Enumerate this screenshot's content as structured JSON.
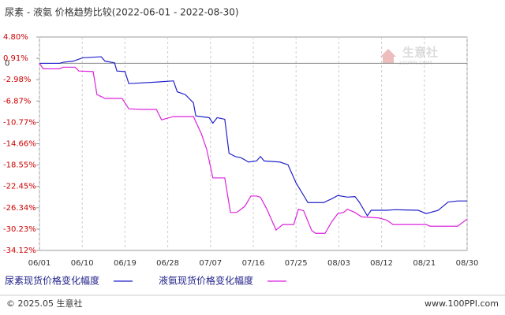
{
  "chart_data": {
    "type": "line",
    "title": "尿素 - 液氨 价格趋势比较(2022-06-01 - 2022-08-30)",
    "xlim": [
      0,
      90
    ],
    "xticks": [
      {
        "value": 0,
        "label": "06/01"
      },
      {
        "value": 9,
        "label": "06/10"
      },
      {
        "value": 18,
        "label": "06/19"
      },
      {
        "value": 27,
        "label": "06/28"
      },
      {
        "value": 36,
        "label": "07/07"
      },
      {
        "value": 45,
        "label": "07/16"
      },
      {
        "value": 54,
        "label": "07/25"
      },
      {
        "value": 63,
        "label": "08/03"
      },
      {
        "value": 72,
        "label": "08/12"
      },
      {
        "value": 81,
        "label": "08/21"
      },
      {
        "value": 90,
        "label": "08/30"
      }
    ],
    "ylim": [
      -34.12,
      4.8
    ],
    "yticks": [
      {
        "value": 4.8,
        "label": "4.80%"
      },
      {
        "value": 0.91,
        "label": "0.91%"
      },
      {
        "value": -2.98,
        "label": "-2.98%"
      },
      {
        "value": -6.87,
        "label": "-6.87%"
      },
      {
        "value": -10.77,
        "label": "-10.77%"
      },
      {
        "value": -14.66,
        "label": "-14.66%"
      },
      {
        "value": -18.55,
        "label": "-18.55%"
      },
      {
        "value": -22.45,
        "label": "-22.45%"
      },
      {
        "value": -26.34,
        "label": "-26.34%"
      },
      {
        "value": -30.23,
        "label": "-30.23%"
      },
      {
        "value": -34.12,
        "label": "-34.12%"
      }
    ],
    "zero_line": {
      "value": 0,
      "label": "0"
    },
    "grid": "x",
    "series": [
      {
        "name": "尿素现货价格变化幅度",
        "color": "#2222cc",
        "x": [
          0,
          4.2,
          5,
          7.1,
          9.1,
          13,
          13.8,
          15.8,
          16.3,
          18,
          18.8,
          24.9,
          28.2,
          29,
          30.7,
          32.4,
          32.9,
          35.7,
          36.5,
          37.4,
          39,
          39.9,
          41.2,
          42.4,
          44,
          45.7,
          46.5,
          47.3,
          50.6,
          52.3,
          54,
          56.5,
          59.8,
          61.5,
          62.8,
          64.8,
          66.4,
          67.3,
          69,
          69.8,
          73.1,
          74.8,
          79.7,
          81.4,
          83.9,
          86,
          88,
          90
        ],
        "values": [
          0,
          0,
          0.2,
          0.4,
          1.0,
          1.2,
          0.4,
          0.1,
          -1.4,
          -1.5,
          -3.7,
          -3.4,
          -3.2,
          -5.2,
          -5.7,
          -7.2,
          -9.6,
          -9.9,
          -10.9,
          -9.9,
          -10.2,
          -16.4,
          -17.0,
          -17.2,
          -18.0,
          -17.8,
          -17.0,
          -17.8,
          -18.0,
          -18.5,
          -21.8,
          -25.4,
          -25.4,
          -24.7,
          -24.1,
          -24.4,
          -24.3,
          -25.3,
          -27.8,
          -26.8,
          -26.8,
          -26.7,
          -26.8,
          -27.4,
          -26.8,
          -25.3,
          -25.1,
          -25.1
        ]
      },
      {
        "name": "液氨现货价格变化幅度",
        "color": "#dd22dd",
        "x": [
          0,
          0.8,
          4.2,
          5,
          7.5,
          8.3,
          11.3,
          12.1,
          13.8,
          17.4,
          18.8,
          21.6,
          24.6,
          25.7,
          28.2,
          32.4,
          34.1,
          35.2,
          36.5,
          39,
          40.2,
          41.5,
          43.2,
          44.5,
          45.7,
          46.5,
          47.8,
          49.8,
          51.2,
          53.5,
          54.5,
          55.6,
          57.3,
          58.1,
          60.1,
          61.5,
          62.8,
          64,
          64.8,
          66.4,
          67.8,
          71.4,
          73.1,
          74.4,
          81.4,
          82.2,
          88,
          90
        ],
        "values": [
          0,
          -1.0,
          -1.0,
          -0.7,
          -0.7,
          -1.4,
          -1.5,
          -5.7,
          -6.4,
          -6.4,
          -8.3,
          -8.4,
          -8.4,
          -10.3,
          -9.7,
          -9.7,
          -12.9,
          -15.7,
          -20.9,
          -20.9,
          -27.2,
          -27.2,
          -26.1,
          -24.2,
          -24.2,
          -24.4,
          -26.5,
          -30.4,
          -29.4,
          -29.4,
          -26.6,
          -26.9,
          -30.5,
          -31.0,
          -31.0,
          -28.9,
          -27.4,
          -27.2,
          -26.6,
          -27.2,
          -28.0,
          -28.2,
          -28.6,
          -29.4,
          -29.4,
          -29.7,
          -29.7,
          -28.4
        ]
      }
    ],
    "watermark": {
      "brand": "生意社",
      "site": "100PPI.COM"
    },
    "footer": {
      "copyright": "© 2025.05 生意社",
      "url": "www.100PPI.com"
    }
  }
}
